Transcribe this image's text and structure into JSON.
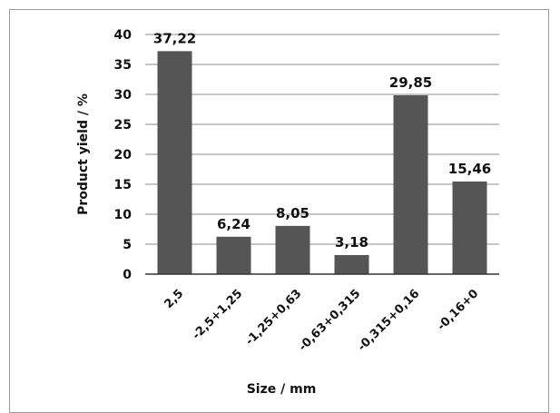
{
  "chart_data": {
    "type": "bar",
    "title": "",
    "xlabel": "Size / mm",
    "ylabel": "Product yield / %",
    "categories": [
      "2,5",
      "-2,5+1,25",
      "-1,25+0,63",
      "-0,63+0,315",
      "-0,315+0,16",
      "-0,16+0"
    ],
    "values": [
      37.22,
      6.24,
      8.05,
      3.18,
      29.85,
      15.46
    ],
    "data_labels": [
      "37,22",
      "6,24",
      "8,05",
      "3,18",
      "29,85",
      "15,46"
    ],
    "yticks": [
      "0",
      "5",
      "10",
      "15",
      "20",
      "25",
      "30",
      "35",
      "40"
    ],
    "ylim": [
      0,
      40
    ],
    "grid": true,
    "legend": "none",
    "bar_color": "#555555"
  }
}
